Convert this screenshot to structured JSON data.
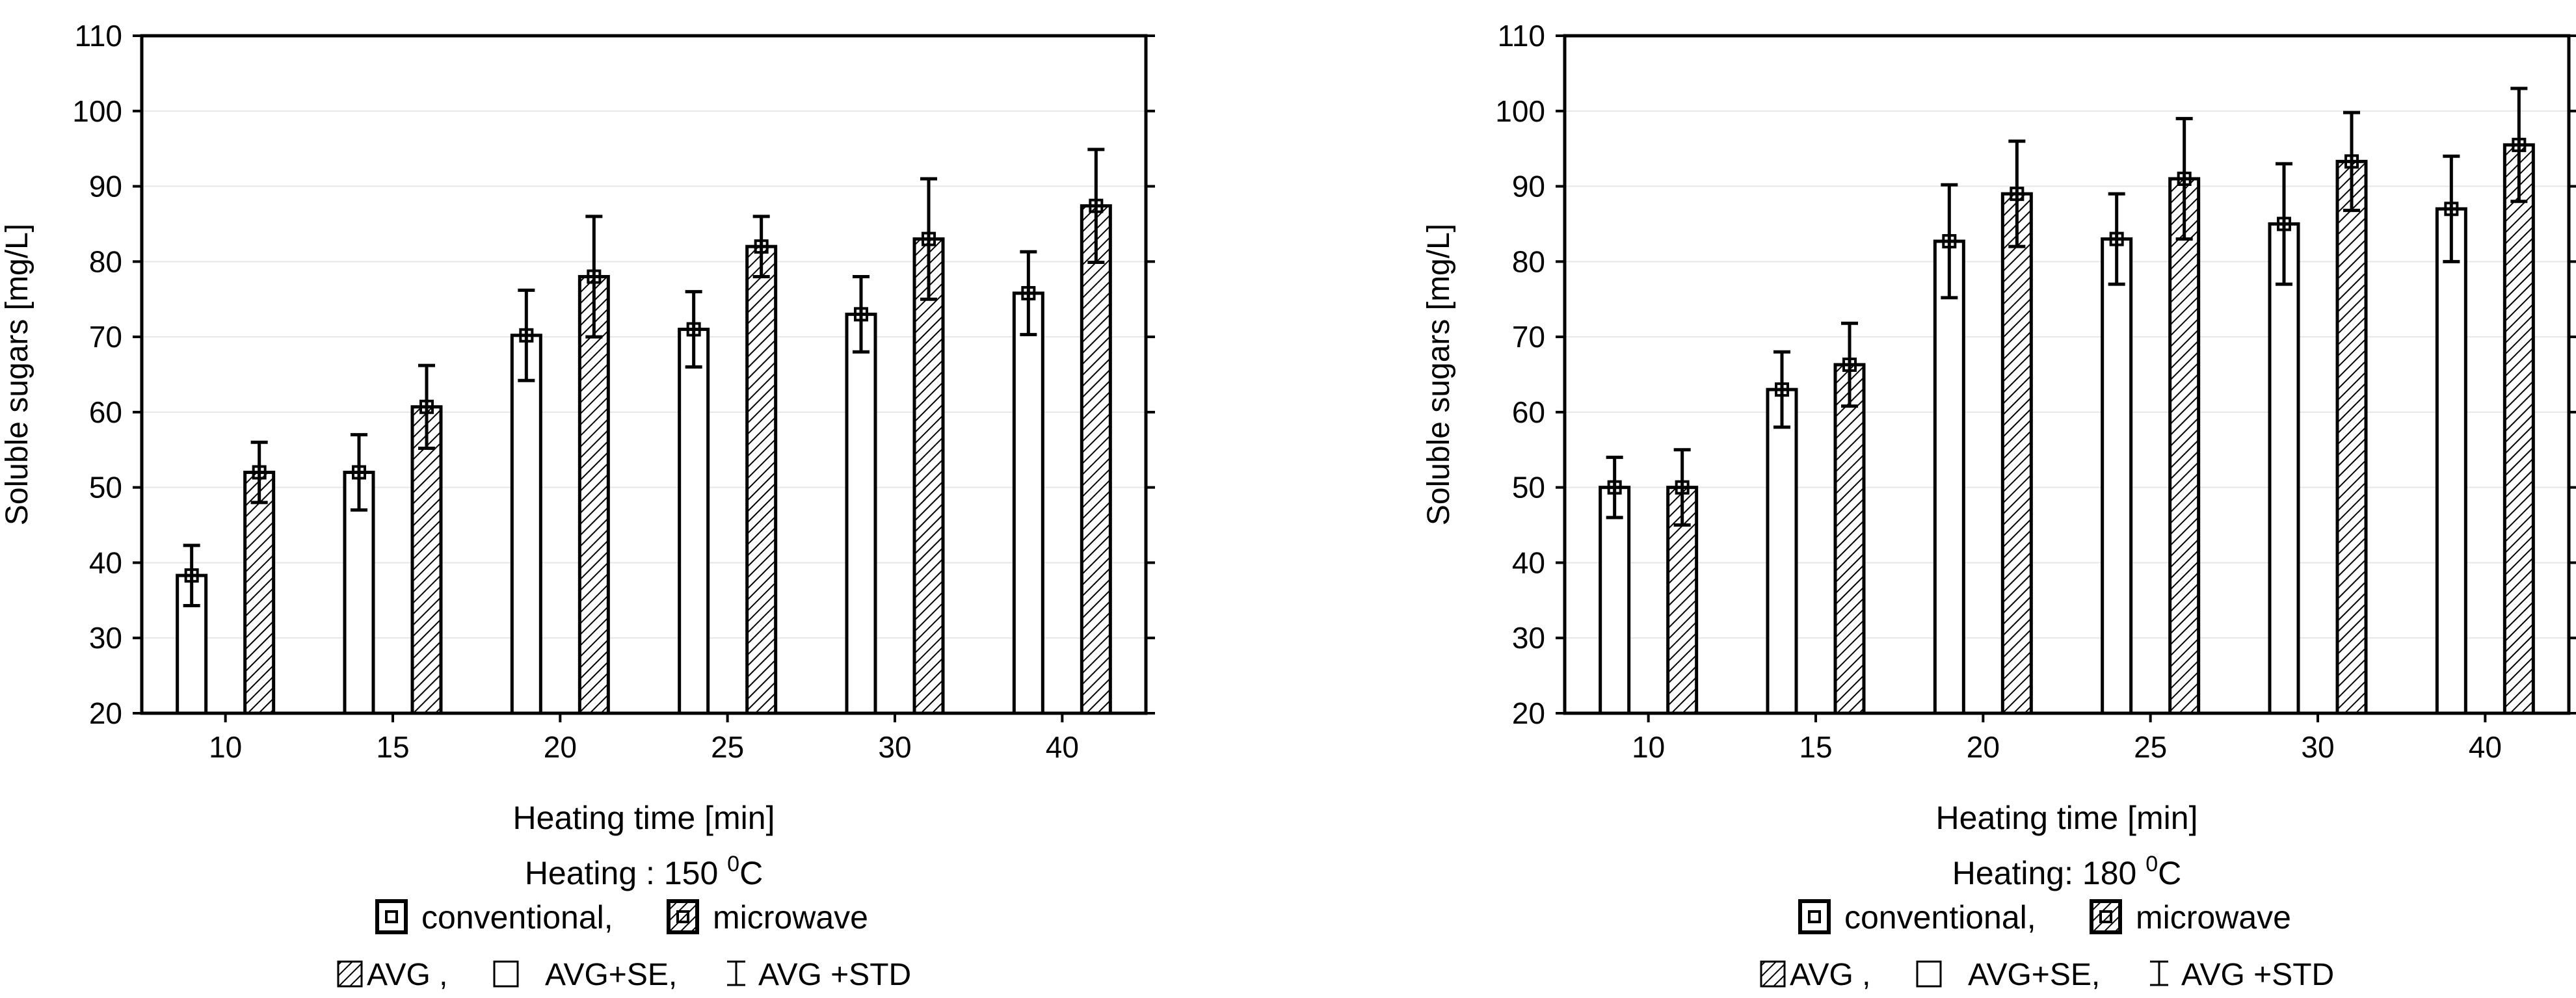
{
  "chart_data": [
    {
      "type": "bar",
      "categories": [
        "10",
        "15",
        "20",
        "25",
        "30",
        "40"
      ],
      "series": [
        {
          "name": "conventional",
          "pattern": "plain",
          "values": [
            38.3,
            52.0,
            70.2,
            71.0,
            73.0,
            75.8
          ],
          "std": [
            4.0,
            5.0,
            6.0,
            5.0,
            5.0,
            5.5
          ]
        },
        {
          "name": "microwave",
          "pattern": "hatched",
          "values": [
            52.0,
            60.7,
            78.0,
            82.0,
            83.0,
            87.4
          ],
          "std": [
            4.0,
            5.5,
            8.0,
            4.0,
            8.0,
            7.5
          ]
        }
      ],
      "xlabel": "Heating time [min]",
      "ylabel": "Soluble sugars [mg/L]",
      "ylim": [
        20,
        110
      ],
      "yticks": [
        20,
        30,
        40,
        50,
        60,
        70,
        80,
        90,
        100,
        110
      ],
      "grid": true,
      "heating": {
        "label": "Heating : 150 ",
        "sup": "0",
        "unit": "C"
      },
      "legend_series": [
        "conventional,",
        "microwave"
      ],
      "legend_stats": [
        "AVG ,",
        "AVG+SE,",
        "AVG +STD"
      ]
    },
    {
      "type": "bar",
      "categories": [
        "10",
        "15",
        "20",
        "25",
        "30",
        "40"
      ],
      "series": [
        {
          "name": "conventional",
          "pattern": "plain",
          "values": [
            50.0,
            63.0,
            82.7,
            83.0,
            85.0,
            87.0
          ],
          "std": [
            4.0,
            5.0,
            7.5,
            6.0,
            8.0,
            7.0
          ]
        },
        {
          "name": "microwave",
          "pattern": "hatched",
          "values": [
            50.0,
            66.3,
            89.0,
            91.0,
            93.3,
            95.5
          ],
          "std": [
            5.0,
            5.5,
            7.0,
            8.0,
            6.5,
            7.5
          ]
        }
      ],
      "xlabel": "Heating time [min]",
      "ylabel": "Soluble sugars [mg/L]",
      "ylim": [
        20,
        110
      ],
      "yticks": [
        20,
        30,
        40,
        50,
        60,
        70,
        80,
        90,
        100,
        110
      ],
      "grid": true,
      "heating": {
        "label": "Heating: 180 ",
        "sup": "0",
        "unit": "C"
      },
      "legend_series": [
        "conventional,",
        "microwave"
      ],
      "legend_stats": [
        "AVG ,",
        "AVG+SE,",
        "AVG +STD"
      ]
    }
  ]
}
